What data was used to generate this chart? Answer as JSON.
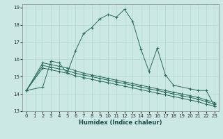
{
  "xlabel": "Humidex (Indice chaleur)",
  "background_color": "#cce8e4",
  "grid_color": "#b0d8d0",
  "line_color": "#2a6b5e",
  "xlim": [
    -0.5,
    23.5
  ],
  "ylim": [
    13,
    19.2
  ],
  "yticks": [
    13,
    14,
    15,
    16,
    17,
    18,
    19
  ],
  "xticks": [
    0,
    1,
    2,
    3,
    4,
    5,
    6,
    7,
    8,
    9,
    10,
    11,
    12,
    13,
    14,
    15,
    16,
    17,
    18,
    19,
    20,
    21,
    22,
    23
  ],
  "series": [
    {
      "x": [
        0,
        2,
        3,
        4,
        5,
        6,
        7,
        8,
        9,
        10,
        11,
        12,
        13,
        14,
        15,
        16,
        17,
        18,
        20,
        21,
        22,
        23
      ],
      "y": [
        14.2,
        14.4,
        15.9,
        15.8,
        15.2,
        16.5,
        17.5,
        17.85,
        18.35,
        18.6,
        18.45,
        18.9,
        18.2,
        16.6,
        15.3,
        16.65,
        15.1,
        14.5,
        14.3,
        14.2,
        14.2,
        13.3
      ]
    },
    {
      "x": [
        0,
        2,
        3,
        4,
        5,
        6,
        7,
        8,
        9,
        10,
        11,
        12,
        13,
        14,
        15,
        16,
        17,
        18,
        19,
        20,
        21,
        22,
        23
      ],
      "y": [
        14.2,
        15.8,
        15.7,
        15.6,
        15.5,
        15.35,
        15.2,
        15.1,
        15.0,
        14.9,
        14.8,
        14.7,
        14.6,
        14.5,
        14.4,
        14.3,
        14.2,
        14.1,
        14.0,
        13.9,
        13.8,
        13.65,
        13.5
      ]
    },
    {
      "x": [
        0,
        2,
        3,
        4,
        5,
        6,
        7,
        8,
        9,
        10,
        11,
        12,
        13,
        14,
        15,
        16,
        17,
        18,
        19,
        20,
        21,
        22,
        23
      ],
      "y": [
        14.2,
        15.65,
        15.55,
        15.45,
        15.35,
        15.2,
        15.1,
        15.0,
        14.9,
        14.8,
        14.7,
        14.6,
        14.5,
        14.4,
        14.3,
        14.2,
        14.1,
        14.0,
        13.9,
        13.8,
        13.7,
        13.55,
        13.4
      ]
    },
    {
      "x": [
        0,
        2,
        3,
        4,
        5,
        6,
        7,
        8,
        9,
        10,
        11,
        12,
        13,
        14,
        15,
        16,
        17,
        18,
        19,
        20,
        21,
        22,
        23
      ],
      "y": [
        14.2,
        15.5,
        15.4,
        15.3,
        15.2,
        15.05,
        14.95,
        14.85,
        14.75,
        14.65,
        14.55,
        14.45,
        14.35,
        14.25,
        14.15,
        14.05,
        13.95,
        13.85,
        13.75,
        13.65,
        13.55,
        13.4,
        13.3
      ]
    }
  ]
}
